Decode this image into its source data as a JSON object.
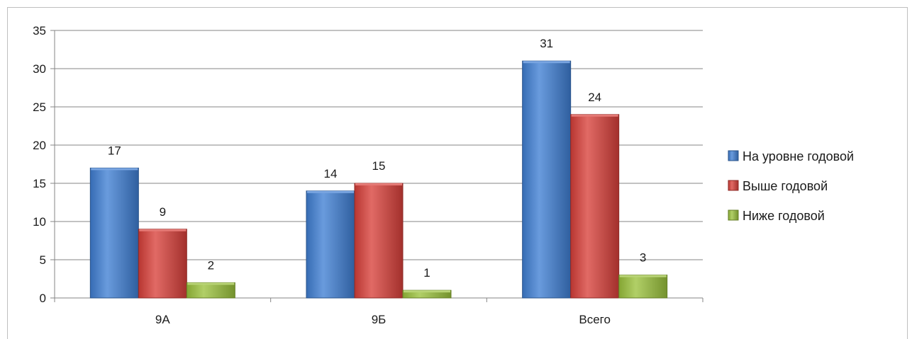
{
  "chart_data": {
    "type": "bar",
    "categories": [
      "9А",
      "9Б",
      "Всего"
    ],
    "series": [
      {
        "name": "На уровне годовой",
        "values": [
          17,
          14,
          31
        ],
        "color": "#3f7fd4"
      },
      {
        "name": "Выше годовой",
        "values": [
          9,
          15,
          24
        ],
        "color": "#d9403a"
      },
      {
        "name": "Ниже годовой",
        "values": [
          2,
          1,
          3
        ],
        "color": "#9bc23c"
      }
    ],
    "ylim": [
      0,
      35
    ],
    "yticks": [
      0,
      5,
      10,
      15,
      20,
      25,
      30,
      35
    ],
    "grid": true,
    "legend_position": "right",
    "data_labels": true
  }
}
